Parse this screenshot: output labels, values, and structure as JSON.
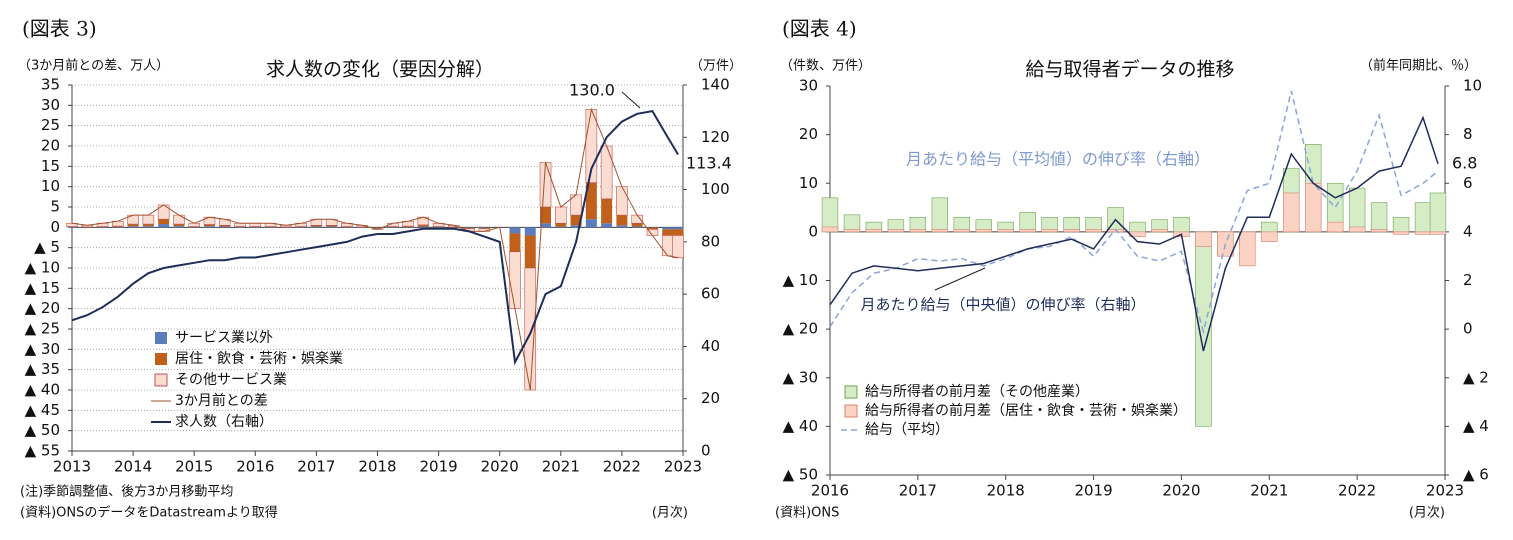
{
  "chart_data": [
    {
      "type": "bar",
      "figure_label": "(図表 3)",
      "title": "求人数の変化（要因分解）",
      "y_label": "（3か月前との差、万人）",
      "y2_label": "（万件）",
      "note": "(注)季節調整値、後方3か月移動平均",
      "source": "(資料)ONSのデータをDatastreamより取得",
      "x_unit": "(月次)",
      "annotations": [
        "130.0",
        "113.4"
      ],
      "stacked": true,
      "grid": true,
      "legend": "lower left",
      "x": [
        2013,
        2013.25,
        2013.5,
        2013.75,
        2014,
        2014.25,
        2014.5,
        2014.75,
        2015,
        2015.25,
        2015.5,
        2015.75,
        2016,
        2016.25,
        2016.5,
        2016.75,
        2017,
        2017.25,
        2017.5,
        2017.75,
        2018,
        2018.25,
        2018.5,
        2018.75,
        2019,
        2019.25,
        2019.5,
        2019.75,
        2020,
        2020.25,
        2020.5,
        2020.75,
        2021,
        2021.25,
        2021.5,
        2021.75,
        2022,
        2022.25,
        2022.5,
        2022.75,
        2022.92
      ],
      "xlim": [
        2013,
        2023
      ],
      "xticks": [
        2013,
        2014,
        2015,
        2016,
        2017,
        2018,
        2019,
        2020,
        2021,
        2022,
        2023
      ],
      "ylim": [
        -55,
        35
      ],
      "yticks": [
        35,
        30,
        25,
        20,
        15,
        10,
        5,
        0,
        {
          "value": -5,
          "label": "▲ 5"
        },
        {
          "value": -10,
          "label": "▲ 10"
        },
        {
          "value": -15,
          "label": "▲ 15"
        },
        {
          "value": -20,
          "label": "▲ 20"
        },
        {
          "value": -25,
          "label": "▲ 25"
        },
        {
          "value": -30,
          "label": "▲ 30"
        },
        {
          "value": -35,
          "label": "▲ 35"
        },
        {
          "value": -40,
          "label": "▲ 40"
        },
        {
          "value": -45,
          "label": "▲ 45"
        },
        {
          "value": -50,
          "label": "▲ 50"
        },
        {
          "value": -55,
          "label": "▲ 55"
        }
      ],
      "y2lim": [
        0,
        140
      ],
      "y2ticks": [
        0,
        20,
        40,
        60,
        80,
        100,
        120,
        140
      ],
      "series": [
        {
          "name": "サービス業以外",
          "kind": "bar",
          "color": "#5b7dbd",
          "values": [
            0.1,
            0,
            0.1,
            0.1,
            0.3,
            0.3,
            0.8,
            0.3,
            0.1,
            0.3,
            0.2,
            0.1,
            0.1,
            0.1,
            0.05,
            0.1,
            0.2,
            0.2,
            0.1,
            0.05,
            -0.1,
            0.1,
            0.1,
            0.2,
            0.1,
            0.05,
            -0.1,
            -0.1,
            0,
            -1.5,
            -2,
            1,
            0.2,
            0.5,
            2,
            1,
            0.5,
            0.2,
            -0.1,
            -0.5,
            -0.5
          ]
        },
        {
          "name": "居住・飲食・芸術・娯楽業",
          "kind": "bar",
          "color": "#c0601a",
          "values": [
            0.1,
            0.1,
            0.1,
            0.2,
            0.5,
            0.5,
            1.2,
            0.5,
            0.1,
            0.4,
            0.3,
            0.1,
            0.1,
            0.1,
            0.05,
            0.1,
            0.3,
            0.3,
            0.1,
            0.05,
            -0.1,
            0.1,
            0.2,
            0.4,
            0.1,
            0.05,
            -0.2,
            -0.2,
            0,
            -4.5,
            -8,
            4,
            0.8,
            2.5,
            9,
            6,
            2.5,
            0.8,
            -0.4,
            -1.5,
            -1.5
          ]
        },
        {
          "name": "その他サービス業",
          "kind": "bar",
          "color": "#fbdcd0",
          "stroke": "#c0504d",
          "values": [
            0.8,
            0.4,
            0.8,
            1.2,
            2.2,
            2.2,
            3.5,
            2.2,
            0.8,
            1.8,
            1.5,
            0.8,
            0.8,
            0.8,
            0.4,
            0.8,
            1.5,
            1.5,
            0.8,
            0.4,
            -0.3,
            0.8,
            1.2,
            1.9,
            0.8,
            0.4,
            -0.7,
            -0.7,
            0,
            -14,
            -30,
            11,
            4,
            5,
            18,
            13,
            7,
            2,
            -1.5,
            -5,
            -5.5
          ]
        },
        {
          "name": "3か月前との差",
          "kind": "line",
          "color": "#a0522d",
          "width": 1,
          "values": [
            1,
            0.5,
            1,
            1.5,
            3,
            3,
            5.5,
            3,
            1,
            2.5,
            2,
            1,
            1,
            1,
            0.5,
            1,
            2,
            2,
            1,
            0.5,
            -0.5,
            1,
            1.5,
            2.5,
            1,
            0.5,
            -1,
            -1,
            0,
            -20,
            -40,
            16,
            5,
            8,
            29,
            20,
            10,
            3,
            -2,
            -7,
            -7.5
          ]
        },
        {
          "name": "求人数（右軸）",
          "kind": "line",
          "axis": "y2",
          "color": "#1f2d5c",
          "width": 2,
          "values": [
            50,
            52,
            55,
            59,
            64,
            68,
            70,
            71,
            72,
            73,
            73,
            74,
            74,
            75,
            76,
            77,
            78,
            79,
            80,
            82,
            83,
            83,
            84,
            85,
            85,
            85,
            84,
            82,
            80,
            34,
            45,
            60,
            63,
            80,
            108,
            120,
            126,
            129,
            130,
            120,
            113.4
          ]
        }
      ]
    },
    {
      "type": "bar",
      "figure_label": "(図表 4)",
      "title": "給与取得者データの推移",
      "y_label": "（件数、万件）",
      "y2_label": "（前年同期比、％）",
      "source": "(資料)ONS",
      "x_unit": "(月次)",
      "annotations": [
        "6.8",
        "月あたり給与（平均値）の伸び率（右軸）"
      ],
      "stacked": false,
      "grid": false,
      "legend": "lower left",
      "x": [
        2016,
        2016.25,
        2016.5,
        2016.75,
        2017,
        2017.25,
        2017.5,
        2017.75,
        2018,
        2018.25,
        2018.5,
        2018.75,
        2019,
        2019.25,
        2019.5,
        2019.75,
        2020,
        2020.25,
        2020.5,
        2020.75,
        2021,
        2021.25,
        2021.5,
        2021.75,
        2022,
        2022.25,
        2022.5,
        2022.75,
        2022.92
      ],
      "xlim": [
        2016,
        2023
      ],
      "xticks": [
        2016,
        2017,
        2018,
        2019,
        2020,
        2021,
        2022,
        2023
      ],
      "ylim": [
        -50,
        30
      ],
      "yticks": [
        30,
        20,
        10,
        0,
        {
          "value": -10,
          "label": "▲ 10"
        },
        {
          "value": -20,
          "label": "▲ 20"
        },
        {
          "value": -30,
          "label": "▲ 30"
        },
        {
          "value": -40,
          "label": "▲ 40"
        },
        {
          "value": -50,
          "label": "▲ 50"
        }
      ],
      "y2lim": [
        -6,
        10
      ],
      "y2ticks": [
        10,
        8,
        6,
        4,
        2,
        0,
        {
          "value": -2,
          "label": "▲ 2"
        },
        {
          "value": -4,
          "label": "▲ 4"
        },
        {
          "value": -6,
          "label": "▲ 6"
        }
      ],
      "series": [
        {
          "name": "給与所得者の前月差（その他産業）",
          "kind": "bar",
          "color": "#d6ecc7",
          "stroke": "#6fa552",
          "values": [
            7,
            3.5,
            2,
            2.5,
            3,
            7,
            3,
            2.5,
            2,
            4,
            3,
            3,
            3,
            5,
            2,
            2.5,
            3,
            -40,
            -5,
            -3,
            2,
            13,
            18,
            10,
            9,
            6,
            3,
            6,
            8
          ]
        },
        {
          "name": "給与所得者の前月差（居住・飲食・芸術・娯楽業）",
          "kind": "bar",
          "color": "#fbd3c5",
          "stroke": "#d9826b",
          "values": [
            1,
            0.5,
            0.5,
            0.5,
            0.5,
            0.5,
            0.5,
            0.5,
            0.5,
            0.5,
            0.5,
            0.5,
            0.5,
            0.5,
            -1,
            0.5,
            -1,
            -3,
            -5,
            -7,
            -2,
            8,
            10,
            2,
            1,
            0.5,
            -0.5,
            -0.5,
            -0.5
          ]
        },
        {
          "name": "給与（平均）",
          "kind": "line",
          "axis": "y2",
          "color": "#8aa5d6",
          "width": 1.5,
          "dash": true,
          "values": [
            0.1,
            1.5,
            2.3,
            2.5,
            2.9,
            2.8,
            2.9,
            2.6,
            2.9,
            3.3,
            3.4,
            3.8,
            3.0,
            4.1,
            3.0,
            2.8,
            3.2,
            -0.1,
            3.5,
            5.7,
            6.0,
            9.8,
            6.0,
            5.0,
            6.5,
            8.8,
            5.5,
            6.0,
            6.5
          ]
        },
        {
          "name": "月あたり給与（中央値）の伸び率（右軸）",
          "kind": "line",
          "axis": "y2",
          "color": "#1f2d5c",
          "width": 1.5,
          "in_legend": false,
          "values": [
            1.0,
            2.3,
            2.6,
            2.5,
            2.4,
            2.5,
            2.6,
            2.7,
            3.0,
            3.3,
            3.5,
            3.7,
            3.3,
            4.5,
            3.6,
            3.5,
            3.9,
            -0.9,
            2.5,
            4.6,
            4.6,
            7.2,
            6.0,
            5.4,
            5.8,
            6.5,
            6.7,
            8.7,
            6.8
          ]
        }
      ]
    }
  ]
}
